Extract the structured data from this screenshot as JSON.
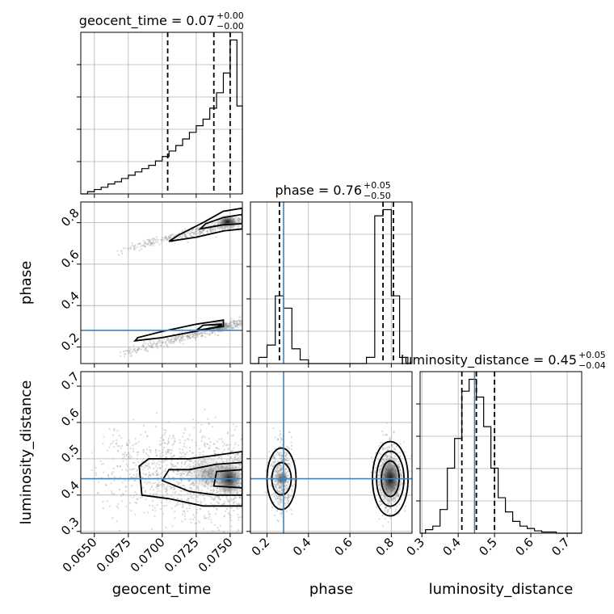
{
  "chart_data": {
    "type": "corner",
    "parameters": [
      "geocent_time",
      "phase",
      "luminosity_distance"
    ],
    "axis_labels": {
      "geocent_time": "geocent_time",
      "phase": "phase",
      "luminosity_distance": "luminosity_distance"
    },
    "ranges": {
      "geocent_time": [
        0.064,
        0.0759
      ],
      "phase": [
        0.12,
        0.9
      ],
      "luminosity_distance": [
        0.295,
        0.74
      ]
    },
    "ticks": {
      "geocent_time": [
        0.065,
        0.0675,
        0.07,
        0.0725,
        0.075
      ],
      "phase": [
        0.2,
        0.4,
        0.6,
        0.8
      ],
      "luminosity_distance": [
        0.3,
        0.4,
        0.5,
        0.6,
        0.7
      ]
    },
    "tick_labels": {
      "geocent_time": [
        "0.0650",
        "0.0675",
        "0.0700",
        "0.0725",
        "0.0750"
      ],
      "phase": [
        "0.2",
        "0.4",
        "0.6",
        "0.8"
      ],
      "luminosity_distance": [
        "0.3",
        "0.4",
        "0.5",
        "0.6",
        "0.7"
      ]
    },
    "titles": {
      "geocent_time": {
        "prefix": "geocent_time = ",
        "median": "0.07",
        "plus": "+0.00",
        "minus": "−0.00"
      },
      "phase": {
        "prefix": "phase = ",
        "median": "0.76",
        "plus": "+0.05",
        "minus": "−0.50"
      },
      "luminosity_distance": {
        "prefix": "luminosity_distance = ",
        "median": "0.45",
        "plus": "+0.05",
        "minus": "−0.04"
      }
    },
    "quantiles": {
      "geocent_time": [
        0.0704,
        0.0738,
        0.075
      ],
      "phase": [
        0.26,
        0.76,
        0.81
      ],
      "luminosity_distance": [
        0.41,
        0.45,
        0.5
      ]
    },
    "truths": {
      "geocent_time": null,
      "phase": 0.28,
      "luminosity_distance": 0.445
    },
    "hist_geocent_time": {
      "edges": [
        0.064,
        0.0645,
        0.065,
        0.0655,
        0.066,
        0.0665,
        0.067,
        0.0675,
        0.068,
        0.0685,
        0.069,
        0.0695,
        0.07,
        0.0705,
        0.071,
        0.0715,
        0.072,
        0.0725,
        0.073,
        0.0735,
        0.074,
        0.0745,
        0.075,
        0.0755,
        0.0759
      ],
      "counts": [
        0,
        2,
        4,
        6,
        9,
        11,
        14,
        17,
        20,
        23,
        26,
        30,
        34,
        39,
        44,
        50,
        56,
        62,
        68,
        78,
        92,
        110,
        140,
        80
      ]
    },
    "hist_phase": {
      "edges": [
        0.12,
        0.16,
        0.2,
        0.24,
        0.28,
        0.32,
        0.36,
        0.4,
        0.44,
        0.48,
        0.52,
        0.56,
        0.6,
        0.64,
        0.68,
        0.72,
        0.76,
        0.8,
        0.84,
        0.88
      ],
      "counts": [
        0,
        5,
        15,
        55,
        45,
        12,
        3,
        0,
        0,
        0,
        0,
        0,
        0,
        0,
        5,
        120,
        125,
        55,
        5
      ]
    },
    "hist_luminosity_distance": {
      "edges": [
        0.295,
        0.31,
        0.33,
        0.35,
        0.37,
        0.39,
        0.41,
        0.43,
        0.45,
        0.47,
        0.49,
        0.51,
        0.53,
        0.55,
        0.57,
        0.59,
        0.61,
        0.63,
        0.65,
        0.67,
        0.69,
        0.71,
        0.74
      ],
      "counts": [
        0,
        3,
        6,
        20,
        55,
        80,
        120,
        130,
        115,
        90,
        55,
        30,
        18,
        10,
        6,
        4,
        2,
        1,
        1,
        0,
        0,
        0
      ]
    }
  }
}
